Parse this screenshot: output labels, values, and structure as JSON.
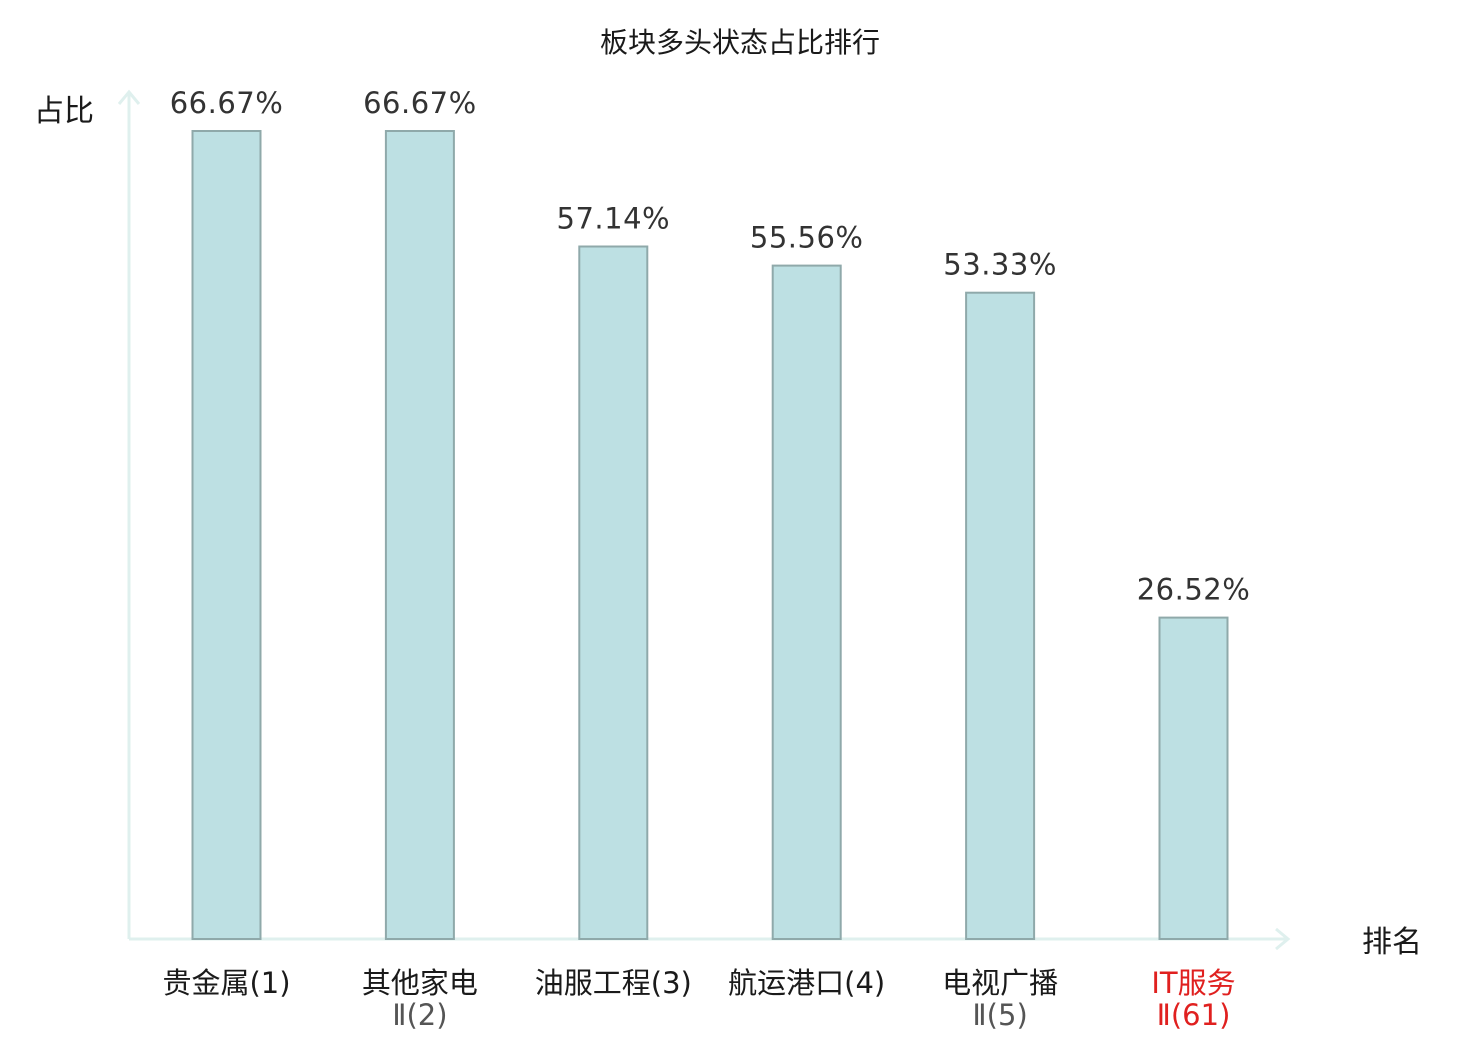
{
  "chart_data": {
    "type": "bar",
    "title": "板块多头状态占比排行",
    "ylabel": "占比",
    "xlabel": "排名",
    "ylim": [
      0,
      70
    ],
    "grid": false,
    "categories": [
      {
        "line1": "贵金属(1)",
        "line2": "",
        "highlight": false
      },
      {
        "line1": "其他家电",
        "line2": "Ⅱ(2)",
        "highlight": false
      },
      {
        "line1": "油服工程(3)",
        "line2": "",
        "highlight": false
      },
      {
        "line1": "航运港口(4)",
        "line2": "",
        "highlight": false
      },
      {
        "line1": "电视广播",
        "line2": "Ⅱ(5)",
        "highlight": false
      },
      {
        "line1": "IT服务",
        "line2": "Ⅱ(61)",
        "highlight": true
      }
    ],
    "values": [
      66.67,
      66.67,
      57.14,
      55.56,
      53.33,
      26.52
    ],
    "value_labels": [
      "66.67%",
      "66.67%",
      "57.14%",
      "55.56%",
      "53.33%",
      "26.52%"
    ],
    "colors": {
      "bar_fill": "#bde0e3",
      "bar_stroke": "#8fa9aa",
      "axis": "#dff0ee",
      "highlight_text": "#e0201f"
    }
  }
}
